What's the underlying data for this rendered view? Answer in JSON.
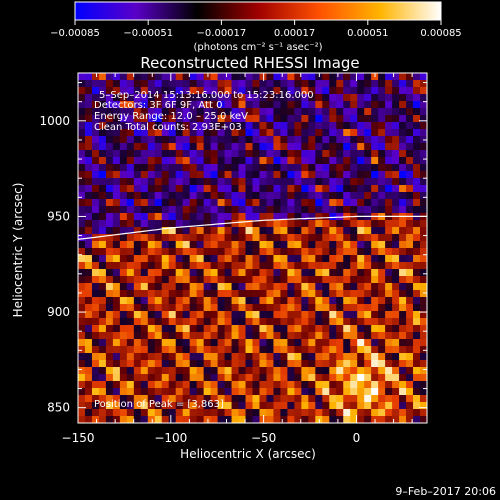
{
  "chart_data": {
    "type": "heatmap",
    "title": "Reconstructed RHESSI Image",
    "xlabel": "Heliocentric X (arcsec)",
    "ylabel": "Heliocentric Y (arcsec)",
    "xlim": [
      -150,
      38
    ],
    "ylim": [
      842,
      1025
    ],
    "x_ticks": [
      -150,
      -100,
      -50,
      0
    ],
    "y_ticks": [
      850,
      900,
      950,
      1000
    ],
    "x_tick_labels": [
      "−150",
      "−100",
      "−50",
      "0"
    ],
    "y_tick_labels": [
      "850",
      "900",
      "950",
      "1000"
    ],
    "colorbar": {
      "range": [
        -0.00085,
        0.00085
      ],
      "ticks": [
        -0.00085,
        -0.00051,
        -0.00017,
        0.00017,
        0.00051,
        0.00085
      ],
      "tick_labels": [
        "−0.00085",
        "−0.00051",
        "−0.00017",
        "0.00017",
        "0.00051",
        "0.00085"
      ],
      "unit_label": "(photons cm⁻² s⁻¹ asec⁻²)",
      "colors": [
        "#0000ff",
        "#5a00c8",
        "#000000",
        "#a00000",
        "#ff5000",
        "#ffb400",
        "#ffffff"
      ]
    },
    "annotations": {
      "time_range": "5–Sep–2014 15:13:16.000 to 15:23:16.000",
      "detectors": "Detectors: 3F 6F 9F, Att 0",
      "energy": "Energy Range: 12.0 – 25.0 keV",
      "clean": "Clean      Total counts: 2.93E+03",
      "peak": "Position of Peak = [3,863]"
    },
    "limb_curve": [
      [
        -150,
        938
      ],
      [
        -100,
        944
      ],
      [
        -50,
        948
      ],
      [
        0,
        950
      ],
      [
        38,
        950
      ]
    ],
    "peak_position": [
      3,
      863
    ],
    "footer_date": "9–Feb–2017 20:06"
  }
}
